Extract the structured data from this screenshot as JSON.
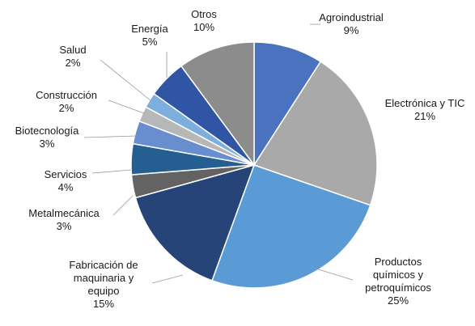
{
  "chart_data": {
    "type": "pie",
    "title": "",
    "slices": [
      {
        "label": "Agroindustrial",
        "value": 9,
        "display": "9%",
        "color": "#4a72be"
      },
      {
        "label": "Electrónica y TIC",
        "value": 21,
        "display": "21%",
        "color": "#a9a9a9"
      },
      {
        "label": "Productos químicos y petroquímicos",
        "label_lines": [
          "Productos",
          "químicos y",
          "petroquímicos"
        ],
        "value": 25,
        "display": "25%",
        "color": "#5b9bd5"
      },
      {
        "label": "Fabricación de maquinaria y equipo",
        "label_lines": [
          "Fabricación de",
          "maquinaria y",
          "equipo"
        ],
        "value": 15,
        "display": "15%",
        "color": "#264478"
      },
      {
        "label": "Metalmecánica",
        "value": 3,
        "display": "3%",
        "color": "#636363"
      },
      {
        "label": "Servicios",
        "value": 4,
        "display": "4%",
        "color": "#255e91"
      },
      {
        "label": "Biotecnología",
        "value": 3,
        "display": "3%",
        "color": "#698ed0"
      },
      {
        "label": "Construcción",
        "value": 2,
        "display": "2%",
        "color": "#b7b7b7"
      },
      {
        "label": "Salud",
        "value": 2,
        "display": "2%",
        "color": "#7cafdd"
      },
      {
        "label": "Energía",
        "value": 5,
        "display": "5%",
        "color": "#2f55a4"
      },
      {
        "label": "Otros",
        "value": 10,
        "display": "10%",
        "color": "#8c8c8c"
      }
    ],
    "legend": "none",
    "start_angle": "12 o'clock",
    "direction": "clockwise"
  }
}
